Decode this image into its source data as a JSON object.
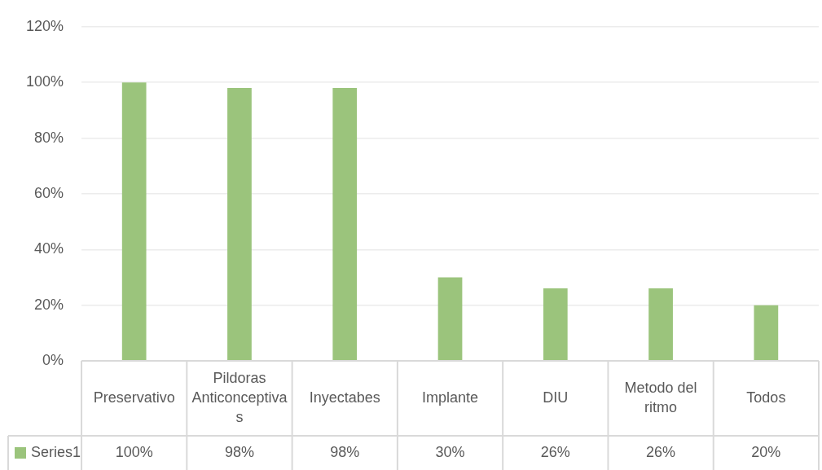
{
  "chart_data": {
    "type": "bar",
    "categories": [
      "Preservativo",
      "Pildoras Anticonceptivas",
      "Inyectabes",
      "Implante",
      "DIU",
      "Metodo del ritmo",
      "Todos"
    ],
    "series": [
      {
        "name": "Series1",
        "color": "#9bc47c",
        "values": [
          100,
          98,
          98,
          30,
          26,
          26,
          20
        ],
        "value_labels": [
          "100%",
          "98%",
          "98%",
          "30%",
          "26%",
          "26%",
          "20%"
        ]
      }
    ],
    "ylim": [
      0,
      120
    ],
    "yticks": [
      {
        "value": 0,
        "label": "0%"
      },
      {
        "value": 20,
        "label": "20%"
      },
      {
        "value": 40,
        "label": "40%"
      },
      {
        "value": 60,
        "label": "60%"
      },
      {
        "value": 80,
        "label": "80%"
      },
      {
        "value": 100,
        "label": "100%"
      },
      {
        "value": 120,
        "label": "120%"
      }
    ],
    "grid": "y"
  }
}
